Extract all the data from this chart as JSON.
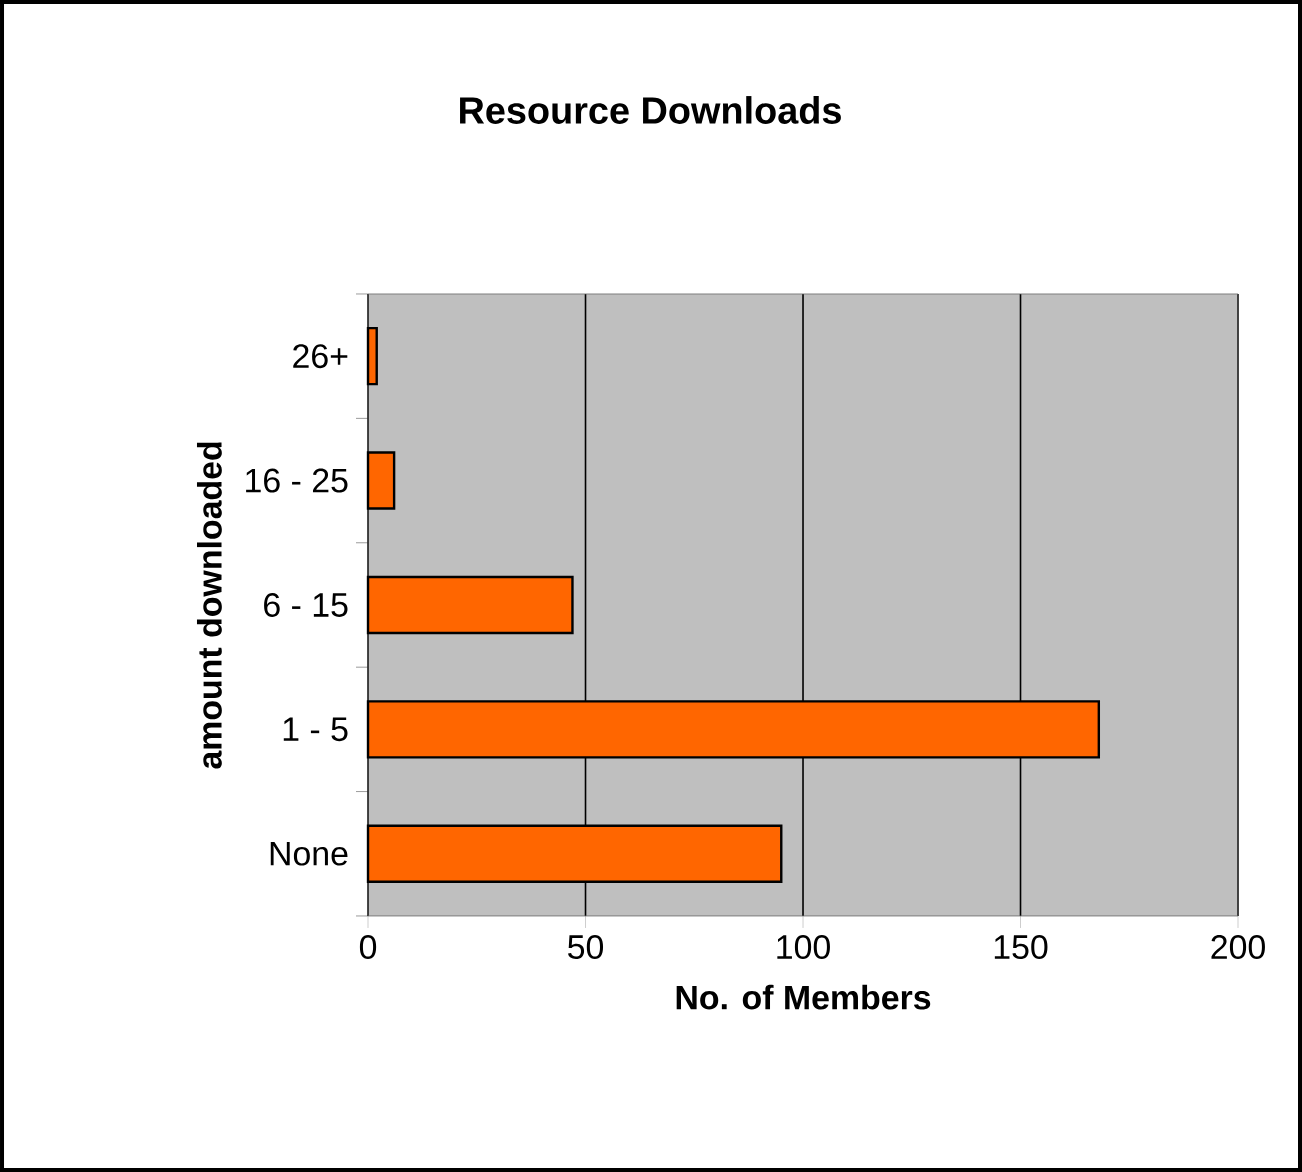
{
  "chart_data": {
    "type": "bar",
    "orientation": "horizontal",
    "title": "Resource Downloads",
    "xlabel": "No. of Members",
    "ylabel": "amount downloaded",
    "categories": [
      "26+",
      "16 - 25",
      "6 - 15",
      "1 - 5",
      "None"
    ],
    "values": [
      2,
      6,
      47,
      168,
      95
    ],
    "color": "#ff6600",
    "xlim": [
      0,
      200
    ],
    "xticks": [
      0,
      50,
      100,
      150,
      200
    ],
    "grid": "x"
  }
}
